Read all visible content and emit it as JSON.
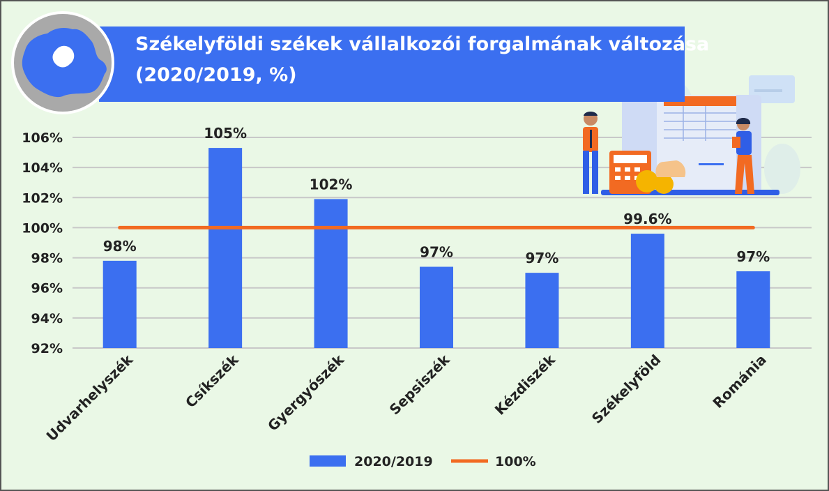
{
  "colors": {
    "bar": "#3b6ff0",
    "line": "#f26a22",
    "grid": "#c8c8c8",
    "title_bg": "#3b6ff0",
    "background": "#eaf8e6"
  },
  "icons": [
    "romania-map-icon",
    "office-people-illustration"
  ],
  "chart_data": {
    "type": "bar",
    "title": "Székelyföldi székek vállalkozói forgalmának változása",
    "subtitle": "(2020/2019, %)",
    "categories": [
      "Udvarhelyszék",
      "Csíkszék",
      "Gyergyószék",
      "Sepsiszék",
      "Kézdiszék",
      "Székelyföld",
      "Románia"
    ],
    "series": [
      {
        "name": "2020/2019",
        "values": [
          97.8,
          105.3,
          101.9,
          97.4,
          97.0,
          99.6,
          97.1
        ],
        "data_labels": [
          "98%",
          "105%",
          "102%",
          "97%",
          "97%",
          "99.6%",
          "97%"
        ]
      },
      {
        "name": "100%",
        "type": "line",
        "values": [
          100,
          100,
          100,
          100,
          100,
          100,
          100
        ]
      }
    ],
    "ylim": [
      92,
      106
    ],
    "yticks": [
      92,
      94,
      96,
      98,
      100,
      102,
      104,
      106
    ],
    "ytick_labels": [
      "92%",
      "94%",
      "96%",
      "98%",
      "100%",
      "102%",
      "104%",
      "106%"
    ],
    "grid": true,
    "legend": "bottom-center"
  }
}
